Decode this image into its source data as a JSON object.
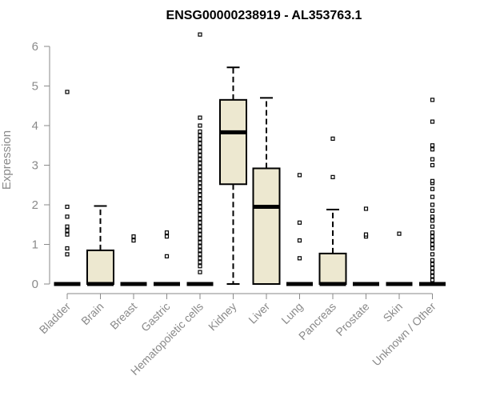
{
  "chart_data": {
    "type": "box",
    "title": "ENSG00000238919 - AL353763.1",
    "xlabel": "",
    "ylabel": "Expression",
    "ylim": [
      0,
      6
    ],
    "yticks": [
      0,
      1,
      2,
      3,
      4,
      5,
      6
    ],
    "grid": false,
    "legend": "none",
    "colors": {
      "box_fill": "#ede8d0",
      "stroke": "#000000",
      "axis": "#8a8a8a"
    },
    "categories": [
      "Bladder",
      "Brain",
      "Breast",
      "Gastric",
      "Hematopoietic cells",
      "Kidney",
      "Liver",
      "Lung",
      "Pancreas",
      "Prostate",
      "Skin",
      "Unknown / Other"
    ],
    "boxes": [
      {
        "category": "Bladder",
        "q1": 0,
        "median": 0,
        "q3": 0,
        "whisker_low": 0,
        "whisker_high": 0,
        "outliers": [
          0.75,
          0.9,
          1.25,
          1.35,
          1.45,
          1.7,
          1.95,
          4.85
        ]
      },
      {
        "category": "Brain",
        "q1": 0,
        "median": 0,
        "q3": 0.85,
        "whisker_low": 0,
        "whisker_high": 1.97,
        "outliers": []
      },
      {
        "category": "Breast",
        "q1": 0,
        "median": 0,
        "q3": 0,
        "whisker_low": 0,
        "whisker_high": 0,
        "outliers": [
          1.1,
          1.2
        ]
      },
      {
        "category": "Gastric",
        "q1": 0,
        "median": 0,
        "q3": 0,
        "whisker_low": 0,
        "whisker_high": 0,
        "outliers": [
          0.7,
          1.2,
          1.3
        ]
      },
      {
        "category": "Hematopoietic cells",
        "q1": 0,
        "median": 0,
        "q3": 0,
        "whisker_low": 0,
        "whisker_high": 0,
        "outliers": [
          0.3,
          0.45,
          0.55,
          0.65,
          0.75,
          0.85,
          0.95,
          1.05,
          1.15,
          1.25,
          1.35,
          1.45,
          1.55,
          1.65,
          1.75,
          1.85,
          1.95,
          2.05,
          2.15,
          2.25,
          2.35,
          2.45,
          2.55,
          2.65,
          2.75,
          2.85,
          2.95,
          3.05,
          3.15,
          3.25,
          3.35,
          3.45,
          3.55,
          3.65,
          3.75,
          3.85,
          4.0,
          4.2,
          6.3
        ]
      },
      {
        "category": "Kidney",
        "q1": 2.52,
        "median": 3.83,
        "q3": 4.65,
        "whisker_low": 0,
        "whisker_high": 5.47,
        "outliers": []
      },
      {
        "category": "Liver",
        "q1": 0,
        "median": 1.95,
        "q3": 2.92,
        "whisker_low": 0,
        "whisker_high": 4.7,
        "outliers": []
      },
      {
        "category": "Lung",
        "q1": 0,
        "median": 0,
        "q3": 0,
        "whisker_low": 0,
        "whisker_high": 0,
        "outliers": [
          0.65,
          1.1,
          1.55,
          2.75
        ]
      },
      {
        "category": "Pancreas",
        "q1": 0,
        "median": 0,
        "q3": 0.77,
        "whisker_low": 0,
        "whisker_high": 1.88,
        "outliers": [
          2.7,
          3.67
        ]
      },
      {
        "category": "Prostate",
        "q1": 0,
        "median": 0,
        "q3": 0,
        "whisker_low": 0,
        "whisker_high": 0,
        "outliers": [
          1.2,
          1.25,
          1.9
        ]
      },
      {
        "category": "Skin",
        "q1": 0,
        "median": 0,
        "q3": 0,
        "whisker_low": 0,
        "whisker_high": 0,
        "outliers": [
          1.27
        ]
      },
      {
        "category": "Unknown / Other",
        "q1": 0,
        "median": 0,
        "q3": 0,
        "whisker_low": 0,
        "whisker_high": 0,
        "outliers": [
          0.1,
          0.2,
          0.3,
          0.4,
          0.5,
          0.6,
          0.75,
          0.9,
          1.0,
          1.1,
          1.2,
          1.3,
          1.45,
          1.6,
          1.7,
          1.85,
          2.0,
          2.2,
          2.4,
          2.55,
          2.6,
          3.0,
          3.15,
          3.4,
          3.5,
          4.1,
          4.65
        ]
      }
    ]
  }
}
